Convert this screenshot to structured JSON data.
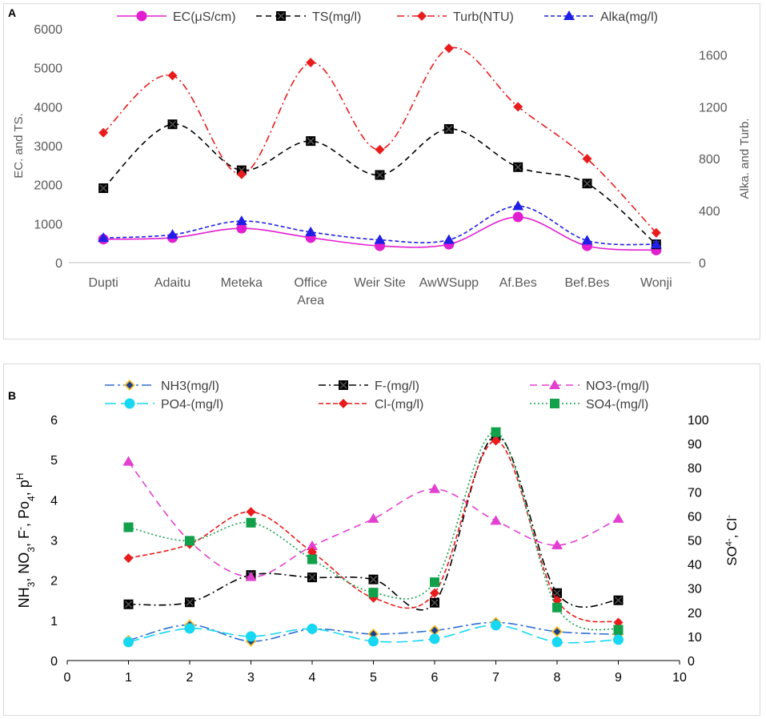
{
  "chart_data": [
    {
      "panel_label": "A",
      "type": "line",
      "categories": [
        "Dupti",
        "Adaitu",
        "Meteka",
        "Office Area",
        "Weir Site",
        "AwWSupp",
        "Af.Bes",
        "Bef.Bes",
        "Wonji"
      ],
      "category_lines": [
        [
          "Dupti"
        ],
        [
          "Adaitu"
        ],
        [
          "Meteka"
        ],
        [
          "Office",
          "Area"
        ],
        [
          "Weir Site"
        ],
        [
          "AwWSupp"
        ],
        [
          "Af.Bes"
        ],
        [
          "Bef.Bes"
        ],
        [
          "Wonji"
        ]
      ],
      "ylabel": "EC. and TS.",
      "ylim": [
        0,
        6000
      ],
      "yticks": [
        "0",
        "1000",
        "2000",
        "3000",
        "4000",
        "5000",
        "6000"
      ],
      "y2label": "Alka. and Turb.",
      "y2lim": [
        0,
        1800
      ],
      "y2ticks": [
        "0",
        "400",
        "800",
        "1200",
        "1600"
      ],
      "series": [
        {
          "name": "EC(μS/cm)",
          "axis": "left",
          "color": "#e11fd0",
          "marker": "circle",
          "dash": "",
          "values": [
            600,
            640,
            880,
            640,
            430,
            470,
            1170,
            430,
            320
          ]
        },
        {
          "name": "TS(mg/l)",
          "axis": "left",
          "color": "#000000",
          "marker": "x-square",
          "dash": "7,5",
          "values": [
            1910,
            3550,
            2370,
            3120,
            2250,
            3430,
            2450,
            2030,
            470
          ]
        },
        {
          "name": "Turb(NTU)",
          "axis": "right",
          "color": "#e81c1c",
          "marker": "diamond",
          "dash": "9,4,2,4",
          "values": [
            1000,
            1440,
            680,
            1540,
            870,
            1650,
            1200,
            800,
            230
          ]
        },
        {
          "name": "Alka(mg/l)",
          "axis": "right",
          "color": "#1f1fe6",
          "marker": "triangle",
          "dash": "5,3",
          "values": [
            190,
            215,
            320,
            235,
            175,
            175,
            435,
            170,
            140
          ]
        }
      ]
    },
    {
      "panel_label": "B",
      "type": "line",
      "xlim": [
        0,
        10
      ],
      "xticks": [
        "0",
        "1",
        "2",
        "3",
        "4",
        "5",
        "6",
        "7",
        "8",
        "9",
        "10"
      ],
      "x": [
        1,
        2,
        3,
        4,
        5,
        6,
        7,
        8,
        9
      ],
      "ylabel": "NH3, NO3, F-, Po4, pH",
      "ylabel_parts": {
        "nh": "NH",
        "n_sub": "3",
        "no": ", NO",
        "no_sub": "3",
        "f": ", F",
        "f_sup": "-",
        "po": ", Po",
        "po_sub": "4",
        "p": ", p",
        "p_sup": "H"
      },
      "ylim": [
        0,
        6
      ],
      "yticks": [
        "0",
        "1",
        "2",
        "3",
        "4",
        "5",
        "6"
      ],
      "y2label": "SO4-, Cl-",
      "y2label_parts": {
        "so": "SO",
        "so_sup": "4-",
        "cl": ", Cl",
        "cl_sup": "-"
      },
      "y2lim": [
        0,
        100
      ],
      "y2ticks": [
        "0",
        "10",
        "20",
        "30",
        "40",
        "50",
        "60",
        "70",
        "80",
        "90",
        "100"
      ],
      "series": [
        {
          "name": "NH3(mg/l)",
          "axis": "left",
          "color": "#2e6fd4",
          "marker": "nh3",
          "dash": "12,4,3,4",
          "values": [
            0.5,
            0.89,
            0.48,
            0.78,
            0.66,
            0.75,
            0.95,
            0.72,
            0.65
          ]
        },
        {
          "name": "F-(mg/l)",
          "axis": "left",
          "color": "#000000",
          "marker": "x-square",
          "dash": "9,4,2,4",
          "values": [
            1.4,
            1.45,
            2.13,
            2.07,
            2.02,
            1.44,
            5.6,
            1.68,
            1.5
          ]
        },
        {
          "name": "NO3-(mg/l)",
          "axis": "left",
          "color": "#e33fd1",
          "marker": "triangle",
          "dash": "9,6",
          "values": [
            4.95,
            2.97,
            2.08,
            2.85,
            3.53,
            4.27,
            3.48,
            2.87,
            3.53
          ]
        },
        {
          "name": "PO4-(mg/l)",
          "axis": "left",
          "color": "#17d7f2",
          "marker": "circle",
          "dash": "14,6",
          "values": [
            0.46,
            0.8,
            0.6,
            0.79,
            0.48,
            0.54,
            0.88,
            0.46,
            0.52
          ]
        },
        {
          "name": "Cl-(mg/l)",
          "axis": "right",
          "color": "#e81c1c",
          "marker": "diamond",
          "dash": "6,3",
          "values": [
            42.5,
            48.3,
            61.7,
            45.0,
            26.0,
            28.0,
            91.2,
            25.0,
            15.8
          ]
        },
        {
          "name": "SO4-(mg/l)",
          "axis": "right",
          "color": "#12a04a",
          "marker": "square",
          "dash": "2,3",
          "values": [
            55.3,
            49.7,
            57.2,
            42.0,
            28.2,
            32.5,
            94.8,
            22.0,
            12.8
          ]
        }
      ]
    }
  ]
}
